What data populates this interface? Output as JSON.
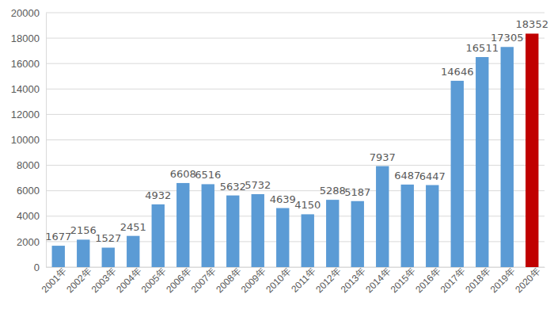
{
  "chart_data": {
    "type": "bar",
    "categories": [
      "2001年",
      "2002年",
      "2003年",
      "2004年",
      "2005年",
      "2006年",
      "2007年",
      "2008年",
      "2009年",
      "2010年",
      "2011年",
      "2012年",
      "2013年",
      "2014年",
      "2015年",
      "2016年",
      "2017年",
      "2018年",
      "2019年",
      "2020年"
    ],
    "values": [
      1677,
      2156,
      1527,
      2451,
      4932,
      6608,
      6516,
      5632,
      5732,
      4639,
      4150,
      5288,
      5187,
      7937,
      6487,
      6447,
      14646,
      16511,
      17305,
      18352
    ],
    "colors": [
      "#5b9bd5",
      "#5b9bd5",
      "#5b9bd5",
      "#5b9bd5",
      "#5b9bd5",
      "#5b9bd5",
      "#5b9bd5",
      "#5b9bd5",
      "#5b9bd5",
      "#5b9bd5",
      "#5b9bd5",
      "#5b9bd5",
      "#5b9bd5",
      "#5b9bd5",
      "#5b9bd5",
      "#5b9bd5",
      "#5b9bd5",
      "#5b9bd5",
      "#5b9bd5",
      "#c00000"
    ],
    "ylim": [
      0,
      20000
    ],
    "yticks": [
      0,
      2000,
      4000,
      6000,
      8000,
      10000,
      12000,
      14000,
      16000,
      18000,
      20000
    ],
    "grid": true,
    "data_labels": true
  }
}
